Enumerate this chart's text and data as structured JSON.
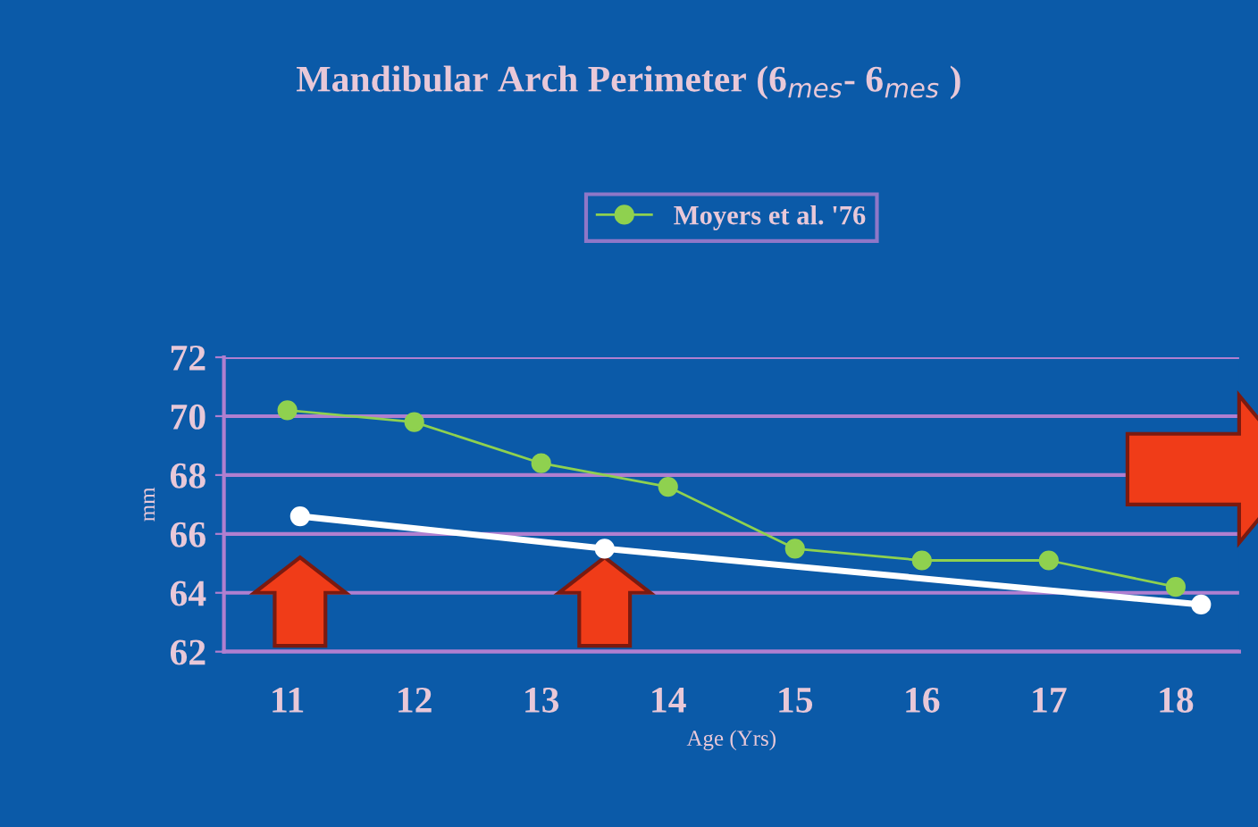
{
  "chart_data": {
    "type": "line",
    "title": "Mandibular Arch Perimeter (6$_{mes}$- 6$_{mes}$ )",
    "xlabel": "Age (Yrs)",
    "ylabel": "mm",
    "xlim": [
      10.5,
      18.5
    ],
    "xticks": [
      11,
      12,
      13,
      14,
      15,
      16,
      17,
      18
    ],
    "ylim": [
      62,
      72
    ],
    "yticks": [
      62,
      64,
      66,
      68,
      70,
      72
    ],
    "grid": "y",
    "legend": "top",
    "marker": "circle",
    "series": [
      {
        "name": "Moyers et al. '76",
        "color": "#8fd14f",
        "x": [
          11,
          12,
          13,
          14,
          15,
          16,
          17,
          18
        ],
        "values": [
          70.2,
          69.8,
          68.4,
          67.6,
          65.5,
          65.1,
          65.1,
          64.2
        ]
      },
      {
        "color": "#ffffff",
        "x": [
          11.1,
          13.5,
          18.2
        ],
        "values": [
          66.6,
          65.5,
          63.6
        ]
      }
    ]
  }
}
